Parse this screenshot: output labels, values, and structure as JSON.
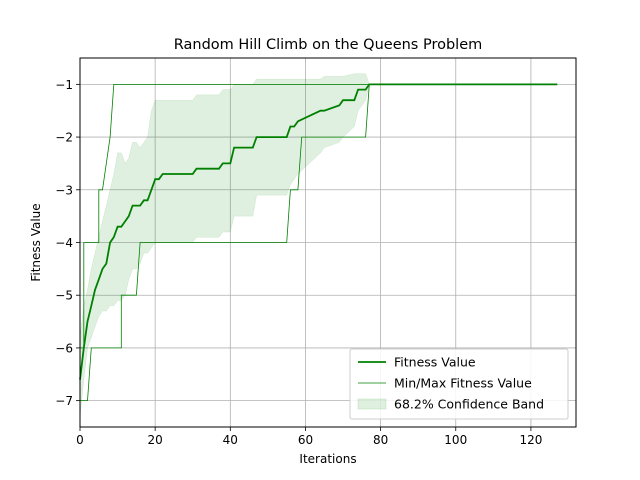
{
  "chart_data": {
    "type": "line",
    "title": "Random Hill Climb on the Queens Problem",
    "xlabel": "Iterations",
    "ylabel": "Fitness Value",
    "xlim": [
      0,
      132
    ],
    "ylim": [
      -7.5,
      -0.5
    ],
    "xticks": [
      0,
      20,
      40,
      60,
      80,
      100,
      120
    ],
    "yticks": [
      -7,
      -6,
      -5,
      -4,
      -3,
      -2,
      -1
    ],
    "grid": true,
    "legend_position": "lower-right",
    "colors": {
      "main": "#008000",
      "band": "#008000"
    },
    "series": [
      {
        "name": "Fitness Value",
        "style": "line-thick",
        "x": [
          0,
          1,
          2,
          3,
          4,
          5,
          6,
          7,
          8,
          9,
          10,
          11,
          12,
          13,
          14,
          15,
          16,
          17,
          18,
          19,
          20,
          21,
          22,
          30,
          31,
          37,
          38,
          40,
          41,
          46,
          47,
          55,
          56,
          57,
          58,
          64,
          65,
          69,
          70,
          73,
          74,
          76,
          77,
          127
        ],
        "y": [
          -6.6,
          -6.0,
          -5.5,
          -5.2,
          -4.9,
          -4.7,
          -4.5,
          -4.4,
          -4.0,
          -3.9,
          -3.7,
          -3.7,
          -3.6,
          -3.5,
          -3.3,
          -3.3,
          -3.3,
          -3.2,
          -3.2,
          -3.0,
          -2.8,
          -2.8,
          -2.7,
          -2.7,
          -2.6,
          -2.6,
          -2.5,
          -2.5,
          -2.2,
          -2.2,
          -2.0,
          -2.0,
          -1.8,
          -1.8,
          -1.7,
          -1.5,
          -1.5,
          -1.4,
          -1.3,
          -1.3,
          -1.1,
          -1.1,
          -1.0,
          -1.0
        ]
      },
      {
        "name": "Min/Max Fitness Value",
        "style": "line-thin",
        "x": [
          0,
          1,
          1,
          3,
          5,
          5,
          6,
          6,
          8,
          9,
          127
        ],
        "y": [
          -6.0,
          -6.0,
          -4.0,
          -4.0,
          -4.0,
          -3.0,
          -3.0,
          -3.0,
          -2.0,
          -1.0,
          -1.0
        ]
      },
      {
        "name": "",
        "style": "line-thin",
        "x": [
          0,
          2,
          3,
          10,
          11,
          11,
          14,
          15,
          16,
          16,
          55,
          56,
          56,
          58,
          59,
          72,
          76,
          77,
          127
        ],
        "y": [
          -7.0,
          -7.0,
          -6.0,
          -6.0,
          -6.0,
          -5.0,
          -5.0,
          -5.0,
          -4.0,
          -4.0,
          -4.0,
          -3.0,
          -3.0,
          -3.0,
          -2.0,
          -2.0,
          -2.0,
          -1.0,
          -1.0
        ]
      },
      {
        "name": "68.2% Confidence Band",
        "style": "band",
        "x": [
          0,
          1,
          2,
          3,
          4,
          5,
          6,
          7,
          8,
          9,
          10,
          11,
          12,
          13,
          14,
          15,
          16,
          17,
          18,
          19,
          20,
          21,
          22,
          30,
          31,
          37,
          38,
          40,
          41,
          46,
          47,
          55,
          56,
          57,
          58,
          64,
          65,
          69,
          70,
          73,
          74,
          76,
          77
        ],
        "upper": [
          -5.8,
          -5.2,
          -4.9,
          -4.5,
          -4.2,
          -3.9,
          -3.6,
          -3.3,
          -3.0,
          -2.7,
          -2.3,
          -2.3,
          -2.5,
          -2.4,
          -2.1,
          -2.1,
          -2.2,
          -2.1,
          -2.0,
          -1.5,
          -1.3,
          -1.3,
          -1.3,
          -1.3,
          -1.2,
          -1.2,
          -1.1,
          -1.1,
          -1.0,
          -1.0,
          -0.9,
          -0.9,
          -0.9,
          -0.9,
          -0.9,
          -0.9,
          -0.85,
          -0.85,
          -0.85,
          -0.8,
          -0.8,
          -0.8,
          -1.0
        ],
        "lower": [
          -7.3,
          -6.6,
          -6.0,
          -5.8,
          -5.6,
          -5.4,
          -5.3,
          -5.3,
          -5.2,
          -5.2,
          -5.1,
          -5.1,
          -5.0,
          -4.7,
          -4.5,
          -4.5,
          -4.4,
          -4.2,
          -4.2,
          -4.1,
          -4.0,
          -4.0,
          -4.0,
          -4.0,
          -3.9,
          -3.9,
          -3.8,
          -3.8,
          -3.5,
          -3.5,
          -3.1,
          -3.1,
          -2.9,
          -2.8,
          -2.7,
          -2.3,
          -2.2,
          -2.1,
          -2.0,
          -1.8,
          -1.5,
          -1.3,
          -1.0
        ]
      }
    ]
  }
}
